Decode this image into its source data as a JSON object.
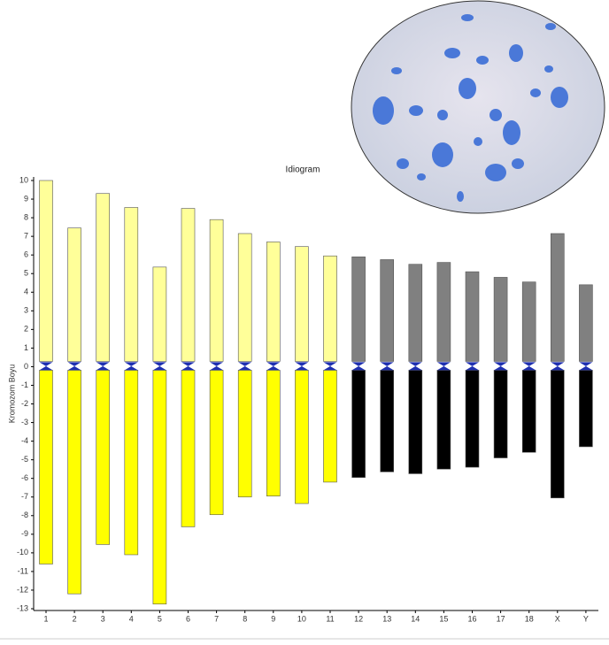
{
  "chart_data": {
    "type": "idiogram",
    "title": "Idiogram",
    "y_label": "Kromozom Boyu",
    "categories": [
      "1",
      "2",
      "3",
      "4",
      "5",
      "6",
      "7",
      "8",
      "9",
      "10",
      "11",
      "12",
      "13",
      "14",
      "15",
      "16",
      "17",
      "18",
      "X",
      "Y"
    ],
    "series": [
      {
        "colors": [
          "#ffff99",
          "#ffff99",
          "#ffff99",
          "#ffff99",
          "#ffff99",
          "#ffff99",
          "#ffff99",
          "#ffff99",
          "#ffff99",
          "#ffff99",
          "#ffff99",
          "#808080",
          "#808080",
          "#808080",
          "#808080",
          "#808080",
          "#808080",
          "#808080",
          "#808080",
          "#808080"
        ],
        "values": [
          10.0,
          7.45,
          9.3,
          8.55,
          5.35,
          8.5,
          7.9,
          7.15,
          6.7,
          6.45,
          5.95,
          5.9,
          5.75,
          5.5,
          5.6,
          5.1,
          4.8,
          4.55,
          7.15,
          4.4
        ]
      },
      {
        "colors": [
          "#ffff00",
          "#ffff00",
          "#ffff00",
          "#ffff00",
          "#ffff00",
          "#ffff00",
          "#ffff00",
          "#ffff00",
          "#ffff00",
          "#ffff00",
          "#ffff00",
          "#000000",
          "#000000",
          "#000000",
          "#000000",
          "#000000",
          "#000000",
          "#000000",
          "#000000",
          "#000000"
        ],
        "values": [
          -10.6,
          -12.2,
          -9.55,
          -10.1,
          -12.75,
          -8.6,
          -7.95,
          -7.0,
          -6.95,
          -7.35,
          -6.2,
          -5.95,
          -5.65,
          -5.75,
          -5.5,
          -5.4,
          -4.9,
          -4.6,
          -7.05,
          -4.3
        ]
      }
    ],
    "ylim": [
      -13,
      10
    ],
    "yticks": [
      -13,
      -12,
      -11,
      -10,
      -9,
      -8,
      -7,
      -6,
      -5,
      -4,
      -3,
      -2,
      -1,
      0,
      1,
      2,
      3,
      4,
      5,
      6,
      7,
      8,
      9,
      10
    ]
  }
}
